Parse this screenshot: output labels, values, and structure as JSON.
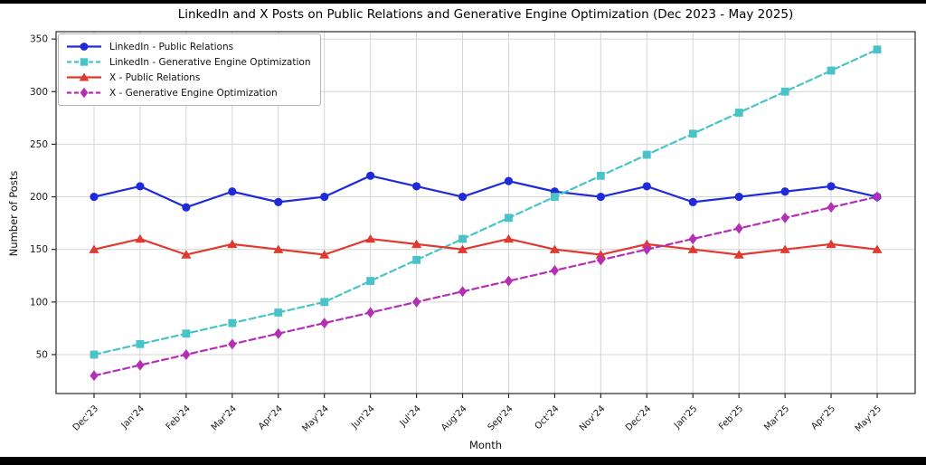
{
  "chart_data": {
    "type": "line",
    "title": "LinkedIn and X Posts on Public Relations and Generative Engine Optimization (Dec 2023 - May 2025)",
    "xlabel": "Month",
    "ylabel": "Number of Posts",
    "categories": [
      "Dec'23",
      "Jan'24",
      "Feb'24",
      "Mar'24",
      "Apr'24",
      "May'24",
      "Jun'24",
      "Jul'24",
      "Aug'24",
      "Sep'24",
      "Oct'24",
      "Nov'24",
      "Dec'24",
      "Jan'25",
      "Feb'25",
      "Mar'25",
      "Apr'25",
      "May'25"
    ],
    "yticks": [
      50,
      100,
      150,
      200,
      250,
      300,
      350
    ],
    "ylim": [
      13,
      357
    ],
    "grid": true,
    "legend_position": "upper-left",
    "colors": {
      "grid": "#d4d4d4",
      "spine": "#2a2a2a",
      "tick_text": "#1a1a1a"
    },
    "series": [
      {
        "name": "LinkedIn - Public Relations",
        "color": "#1f2bd9",
        "marker": "circle",
        "line_style": "solid",
        "values": [
          200,
          210,
          190,
          205,
          195,
          200,
          220,
          210,
          200,
          215,
          205,
          200,
          210,
          195,
          200,
          205,
          210,
          200
        ]
      },
      {
        "name": "LinkedIn - Generative Engine Optimization",
        "color": "#48c4c8",
        "marker": "square",
        "line_style": "dashed",
        "values": [
          50,
          60,
          70,
          80,
          90,
          100,
          120,
          140,
          160,
          180,
          200,
          220,
          240,
          260,
          280,
          300,
          320,
          340
        ]
      },
      {
        "name": "X - Public Relations",
        "color": "#e03a30",
        "marker": "triangle",
        "line_style": "solid",
        "values": [
          150,
          160,
          145,
          155,
          150,
          145,
          160,
          155,
          150,
          160,
          150,
          145,
          155,
          150,
          145,
          150,
          155,
          150
        ]
      },
      {
        "name": "X - Generative Engine Optimization",
        "color": "#b52fb5",
        "marker": "diamond",
        "line_style": "dashed",
        "values": [
          30,
          40,
          50,
          60,
          70,
          80,
          90,
          100,
          110,
          120,
          130,
          140,
          150,
          160,
          170,
          180,
          190,
          200
        ]
      }
    ]
  }
}
